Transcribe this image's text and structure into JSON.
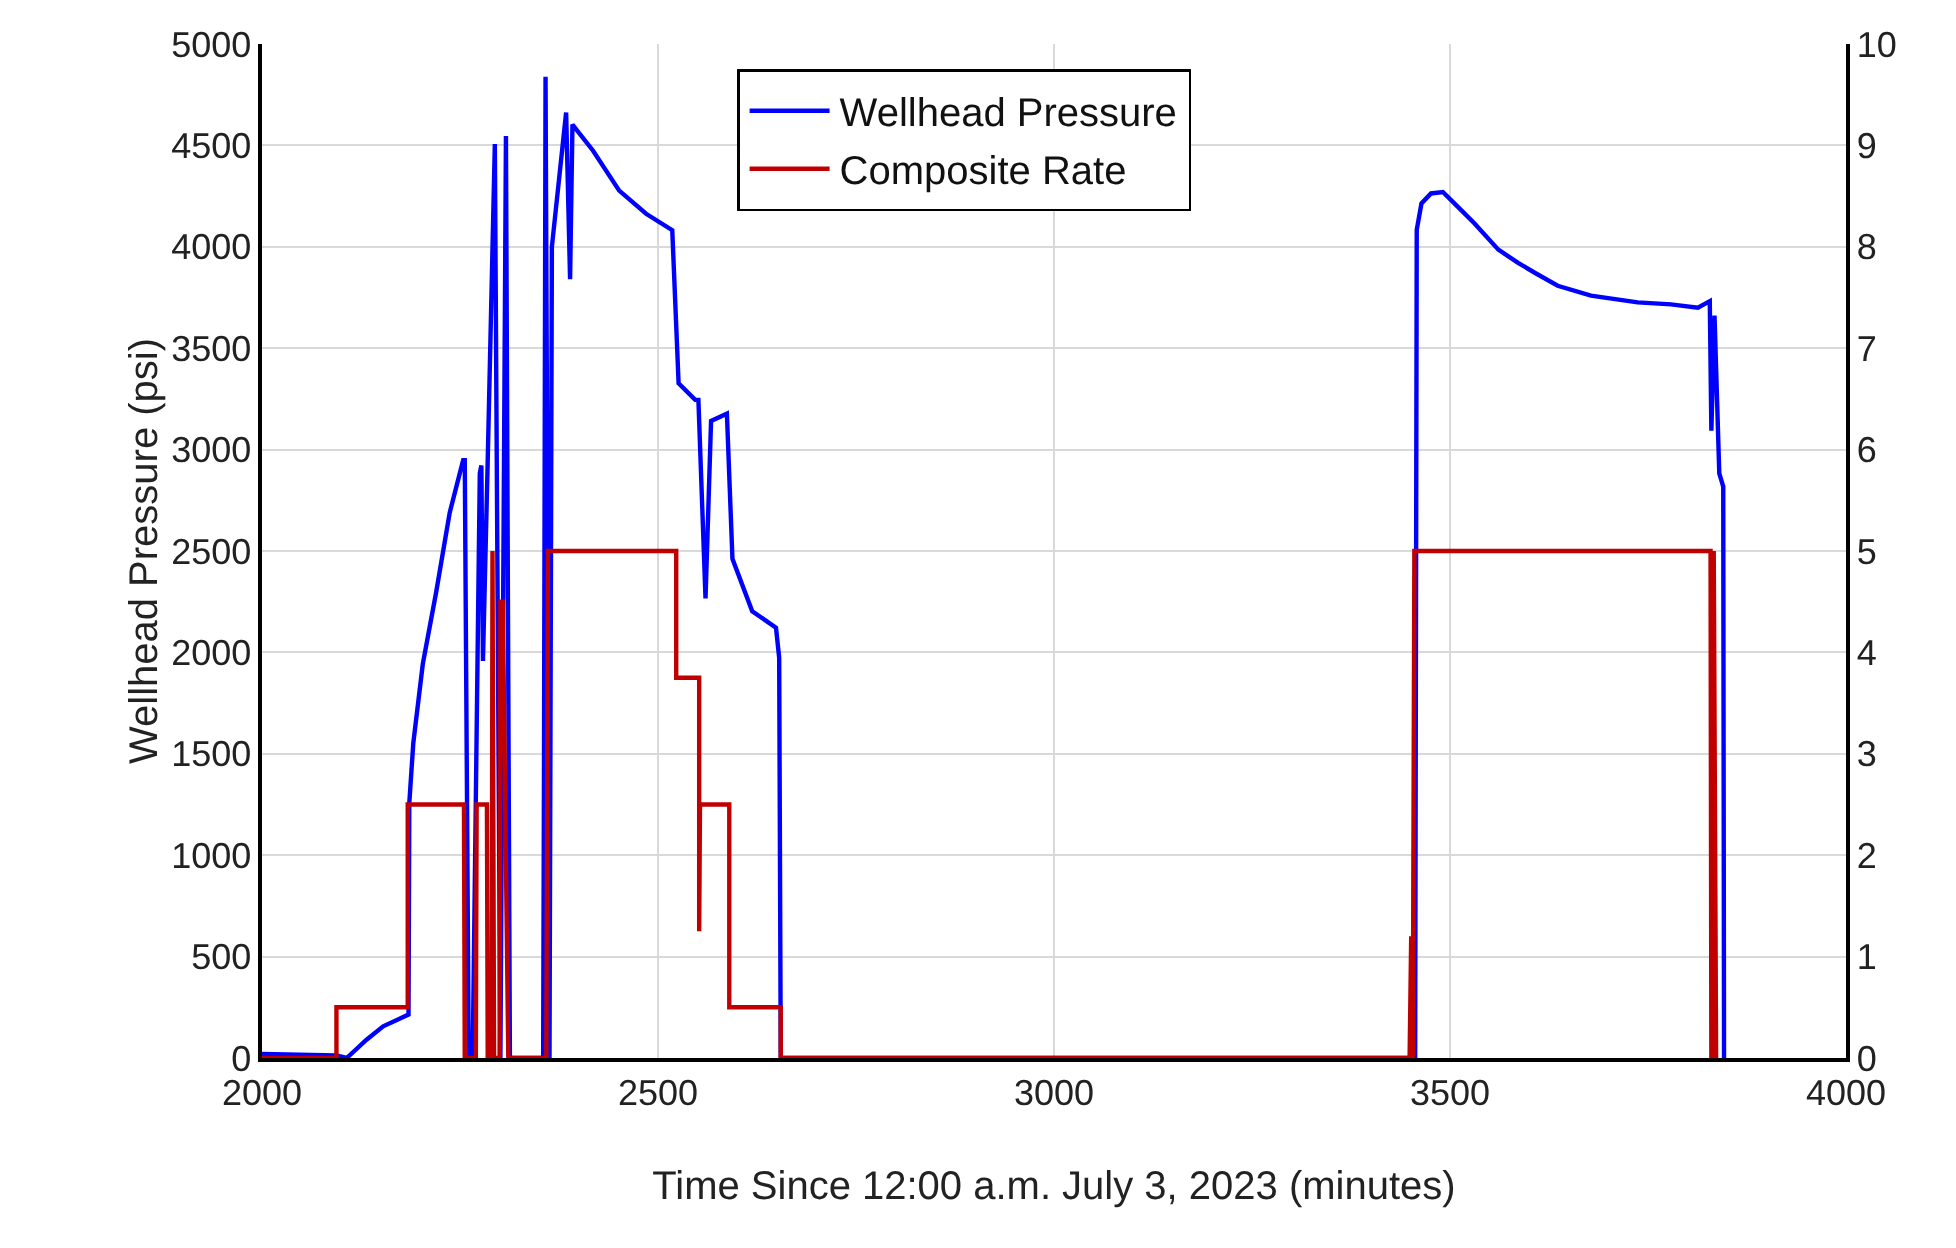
{
  "chart_data": {
    "type": "line",
    "xlabel": "Time Since 12:00 a.m. July 3, 2023 (minutes)",
    "ylabel": "Wellhead Pressure (psi)",
    "xlim": [
      2000,
      4000
    ],
    "xticks": [
      2000,
      2500,
      3000,
      3500,
      4000
    ],
    "ylim": [
      0,
      5000
    ],
    "yticks": [
      0,
      500,
      1000,
      1500,
      2000,
      2500,
      3000,
      3500,
      4000,
      4500,
      5000
    ],
    "y2lim": [
      0,
      10
    ],
    "y2ticks": [
      0,
      1,
      2,
      3,
      4,
      5,
      6,
      7,
      8,
      9,
      10
    ],
    "grid": true,
    "legend": "top",
    "marker": "none",
    "line_style": "solid",
    "series": [
      {
        "name": "Wellhead Pressure",
        "color": "#0000ff",
        "x": [
          2000,
          2094,
          2107,
          2132,
          2153,
          2185,
          2186,
          2191,
          2203,
          2220,
          2237,
          2254,
          2256,
          2261,
          2266,
          2275,
          2277,
          2279,
          2285,
          2294,
          2301,
          2308,
          2313,
          2355,
          2356,
          2358,
          2362,
          2363,
          2366,
          2384,
          2389,
          2392,
          2418,
          2451,
          2485,
          2518,
          2526,
          2547,
          2551,
          2560,
          2567,
          2587,
          2594,
          2619,
          2649,
          2653,
          2655,
          3454,
          3455,
          3456,
          3458,
          3464,
          3476,
          3491,
          3510,
          3531,
          3561,
          3586,
          3607,
          3636,
          3678,
          3737,
          3779,
          3813,
          3828,
          3830,
          3834,
          3840,
          3845,
          3846
        ],
        "values": [
          20,
          13,
          0,
          90,
          156,
          214,
          1260,
          1552,
          1942,
          2299,
          2689,
          2948,
          2948,
          0,
          0,
          2883,
          2922,
          1958,
          2948,
          4507,
          0,
          4546,
          0,
          0,
          1390,
          4838,
          1200,
          0,
          4000,
          4662,
          3840,
          4603,
          4474,
          4277,
          4163,
          4082,
          3327,
          3245,
          3245,
          2266,
          3141,
          3177,
          2462,
          2203,
          2122,
          1974,
          0,
          0,
          1390,
          0,
          4084,
          4214,
          4263,
          4270,
          4197,
          4115,
          3986,
          3921,
          3872,
          3808,
          3759,
          3726,
          3716,
          3700,
          3732,
          3093,
          3661,
          2883,
          2818,
          0
        ]
      },
      {
        "name": "Composite Rate",
        "color": "#c00000",
        "axis": "y2",
        "x": [
          2000,
          2094,
          2094,
          2184,
          2184,
          2255,
          2256,
          2270,
          2271,
          2284,
          2285,
          2290,
          2291,
          2293,
          2300,
          2301,
          2304,
          2311,
          2359,
          2361,
          2523,
          2523,
          2552,
          2552,
          2553,
          2590,
          2590,
          2655,
          2655,
          3449,
          3451,
          3453,
          3455,
          3829,
          3830,
          3832,
          3833,
          3836
        ],
        "values": [
          0,
          0,
          0.5,
          0.5,
          2.5,
          2.5,
          0,
          0,
          2.5,
          2.5,
          0,
          0,
          5,
          0,
          0,
          4.5,
          4.5,
          0,
          0,
          5,
          5,
          3.75,
          3.75,
          1.25,
          2.5,
          2.5,
          0.5,
          0.5,
          0,
          0,
          1.2,
          0,
          5,
          5,
          0,
          0,
          5,
          0
        ]
      }
    ]
  }
}
